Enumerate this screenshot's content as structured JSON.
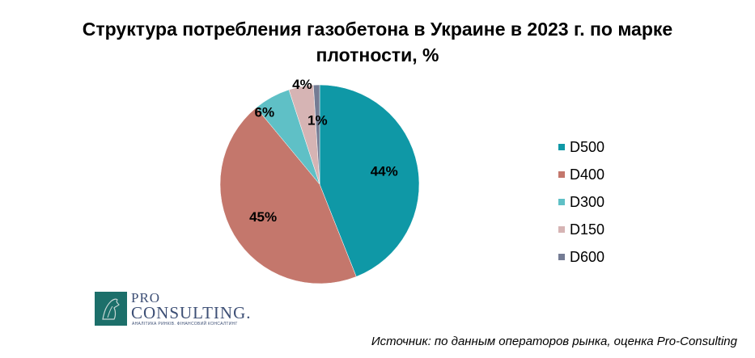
{
  "chart_data": {
    "type": "pie",
    "title": "Структура потребления газобетона в Украине в 2023 г. по марке плотности, %",
    "slices": [
      {
        "label": "D500",
        "value": 44,
        "display": "44%",
        "color": "#0f98a6"
      },
      {
        "label": "D400",
        "value": 45,
        "display": "45%",
        "color": "#c4776c"
      },
      {
        "label": "D300",
        "value": 6,
        "display": "6%",
        "color": "#5fc0c6"
      },
      {
        "label": "D150",
        "value": 4,
        "display": "4%",
        "color": "#d6b4b4"
      },
      {
        "label": "D600",
        "value": 1,
        "display": "1%",
        "color": "#747c94"
      }
    ],
    "legend_position": "right"
  },
  "logo": {
    "pro": "PRO",
    "consulting": "CONSULTING.",
    "tagline": "АНАЛІТИКА РИНКІВ. ФІНАНСОВИЙ КОНСАЛТИНГ"
  },
  "source": "Источник: по данным операторов рынка, оценка Pro-Consulting"
}
